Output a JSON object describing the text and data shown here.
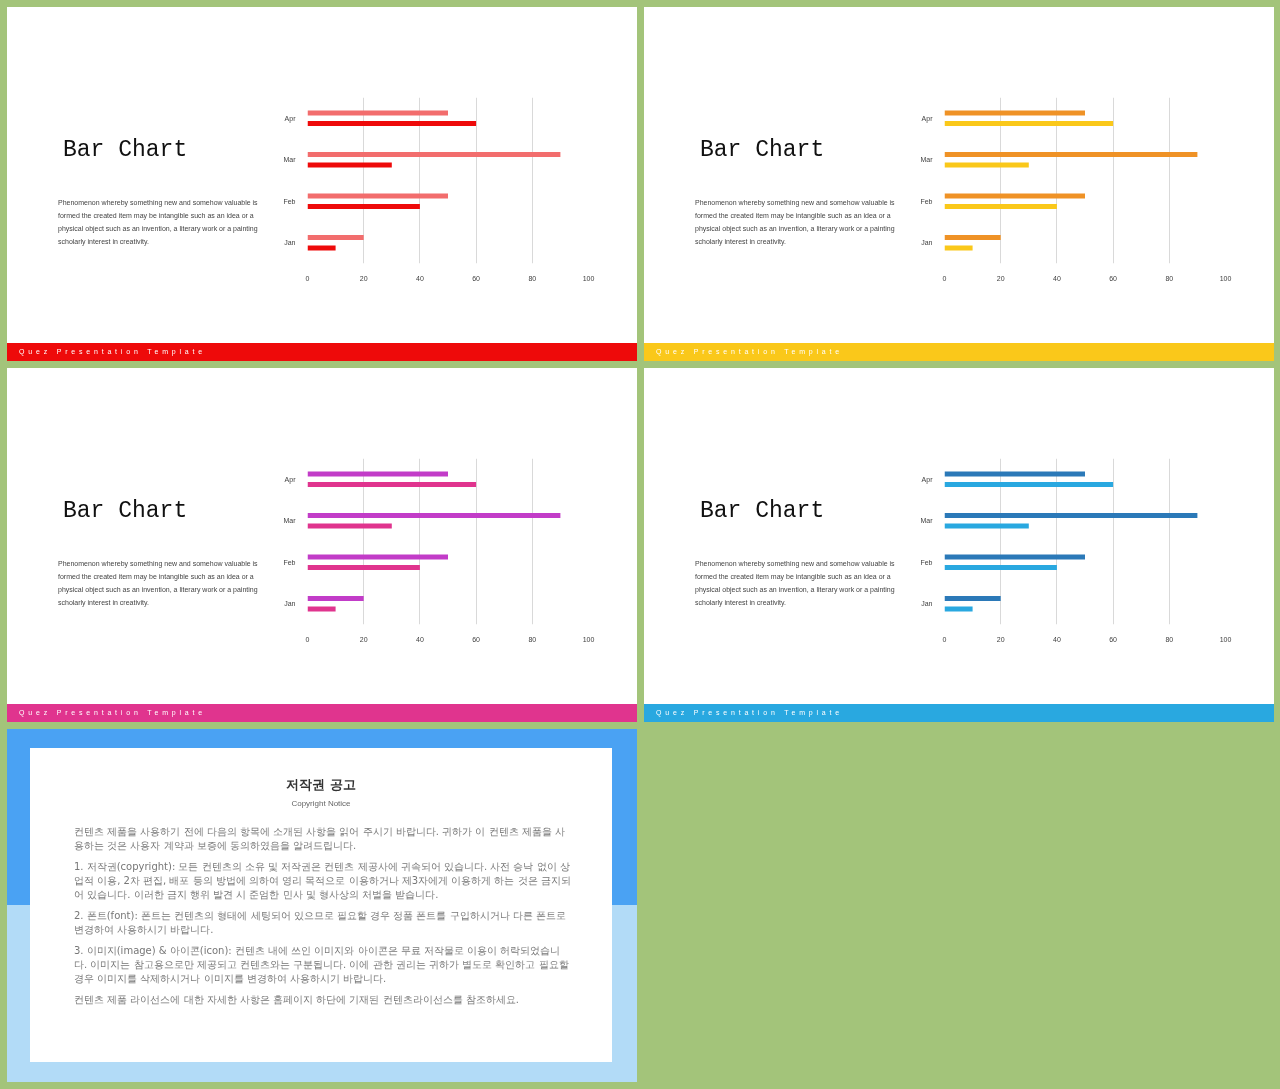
{
  "chart_data": [
    {
      "type": "bar",
      "orientation": "horizontal",
      "title": "Bar Chart",
      "subtitle": "Phenomenon whereby something new and somehow valuable is formed the created item may be intangible such as an idea or a physical object such as an invention, a literary work or a painting scholarly interest in creativity.",
      "annotations": [
        "Quez Presentation Template"
      ],
      "categories": [
        "Apr",
        "Mar",
        "Feb",
        "Jan"
      ],
      "series": [
        {
          "color": "#f26d6d",
          "values": [
            50,
            90,
            50,
            20
          ]
        },
        {
          "color": "#ee0a0a",
          "values": [
            60,
            30,
            40,
            10
          ]
        }
      ],
      "xlim": [
        0,
        100
      ],
      "xticks": [
        0,
        20,
        40,
        60,
        80,
        100
      ],
      "grid": "x"
    },
    {
      "type": "bar",
      "orientation": "horizontal",
      "title": "Bar Chart",
      "subtitle": "Phenomenon whereby something new and somehow valuable is formed the created item may be intangible such as an idea or a physical object such as an invention, a literary work or a painting scholarly interest in creativity.",
      "annotations": [
        "Quez Presentation Template"
      ],
      "categories": [
        "Apr",
        "Mar",
        "Feb",
        "Jan"
      ],
      "series": [
        {
          "color": "#ef9226",
          "values": [
            50,
            90,
            50,
            20
          ]
        },
        {
          "color": "#fac81a",
          "values": [
            60,
            30,
            40,
            10
          ]
        }
      ],
      "xlim": [
        0,
        100
      ],
      "xticks": [
        0,
        20,
        40,
        60,
        80,
        100
      ],
      "grid": "x"
    },
    {
      "type": "bar",
      "orientation": "horizontal",
      "title": "Bar Chart",
      "subtitle": "Phenomenon whereby something new and somehow valuable is formed the created item may be intangible such as an idea or a physical object such as an invention, a literary work or a painting scholarly interest in creativity.",
      "annotations": [
        "Quez Presentation Template"
      ],
      "categories": [
        "Apr",
        "Mar",
        "Feb",
        "Jan"
      ],
      "series": [
        {
          "color": "#c23cc8",
          "values": [
            50,
            90,
            50,
            20
          ]
        },
        {
          "color": "#e0348e",
          "values": [
            60,
            30,
            40,
            10
          ]
        }
      ],
      "xlim": [
        0,
        100
      ],
      "xticks": [
        0,
        20,
        40,
        60,
        80,
        100
      ],
      "grid": "x"
    },
    {
      "type": "bar",
      "orientation": "horizontal",
      "title": "Bar Chart",
      "subtitle": "Phenomenon whereby something new and somehow valuable is formed the created item may be intangible such as an idea or a physical object such as an invention, a literary work or a painting scholarly interest in creativity.",
      "annotations": [
        "Quez Presentation Template"
      ],
      "categories": [
        "Apr",
        "Mar",
        "Feb",
        "Jan"
      ],
      "series": [
        {
          "color": "#2b79b8",
          "values": [
            50,
            90,
            50,
            20
          ]
        },
        {
          "color": "#29a8e0",
          "values": [
            60,
            30,
            40,
            10
          ]
        }
      ],
      "xlim": [
        0,
        100
      ],
      "xticks": [
        0,
        20,
        40,
        60,
        80,
        100
      ],
      "grid": "x"
    },
    {
      "type": "other",
      "title": "저작권 공고",
      "subtitle": "Copyright Notice",
      "annotations": [
        "컨텐츠 제품을 사용하기 전에 다음의 항목에 소개된 사항을 읽어 주시기 바랍니다. 귀하가 이 컨텐츠 제품을 사용하는 것은 사용자 계약과 보증에 동의하였음을 알려드립니다.",
        "1. 저작권(copyright): 모든 컨텐츠의 소유 및 저작권은 컨텐츠 제공사에 귀속되어 있습니다. 사전 승낙 없이 상업적 이용, 2차 편집, 배포 등의 방법에 의하여 영리 목적으로 이용하거나 제3자에게 이용하게 하는 것은 금지되어 있습니다. 이러한 금지 행위 발견 시 준엄한 민사 및 형사상의 처벌을 받습니다.",
        "2. 폰트(font): 폰트는 컨텐츠의 형태에 세팅되어 있으므로 필요할 경우 정품 폰트를 구입하시거나 다른 폰트로 변경하여 사용하시기 바랍니다.",
        "3. 이미지(image) & 아이콘(icon): 컨텐츠 내에 쓰인 이미지와 아이콘은 무료 저작물로 이용이 허락되었습니다. 이미지는 참고용으로만 제공되고 컨텐츠와는 구분됩니다. 이에 관한 권리는 귀하가 별도로 확인하고 필요할 경우 이미지를 삭제하시거나 이미지를 변경하여 사용하시기 바랍니다.",
        "컨텐츠 제품 라이선스에 대한 자세한 사항은 홈페이지 하단에 기재된 컨텐츠라이선스를 참조하세요."
      ]
    }
  ]
}
